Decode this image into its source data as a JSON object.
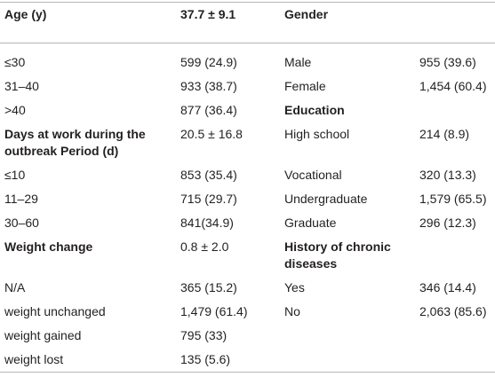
{
  "table": {
    "header": [
      "Age (y)",
      "37.7 ± 9.1",
      "Gender"
    ],
    "rows": [
      {
        "left": [
          "≤30",
          "599 (24.9)"
        ],
        "right": [
          "Male",
          "955 (39.6)"
        ]
      },
      {
        "left": [
          "31–40",
          "933 (38.7)"
        ],
        "right": [
          "Female",
          "1,454 (60.4)"
        ]
      },
      {
        "left": [
          ">40",
          "877 (36.4)"
        ],
        "right": [
          "Education"
        ]
      },
      {
        "left": [
          "Days at work during the outbreak Period (d)",
          "20.5 ± 16.8"
        ],
        "right": [
          "High school",
          "214 (8.9)"
        ]
      },
      {
        "left": [
          "≤10",
          "853 (35.4)"
        ],
        "right": [
          "Vocational",
          "320 (13.3)"
        ]
      },
      {
        "left": [
          "11–29",
          "715 (29.7)"
        ],
        "right": [
          "Undergraduate",
          "1,579 (65.5)"
        ]
      },
      {
        "left": [
          "30–60",
          "841(34.9)"
        ],
        "right": [
          "Graduate",
          "296 (12.3)"
        ]
      },
      {
        "left": [
          "Weight change",
          "0.8 ± 2.0"
        ],
        "right": [
          "History of chronic diseases"
        ]
      },
      {
        "left": [
          "N/A",
          "365 (15.2)"
        ],
        "right": [
          "Yes",
          "346 (14.4)"
        ]
      },
      {
        "left": [
          "weight unchanged",
          "1,479 (61.4)"
        ],
        "right": [
          "No",
          "2,063 (85.6)"
        ]
      },
      {
        "left": [
          "weight gained",
          "795 (33)"
        ]
      },
      {
        "left": [
          "weight lost",
          "135 (5.6)"
        ]
      }
    ]
  }
}
